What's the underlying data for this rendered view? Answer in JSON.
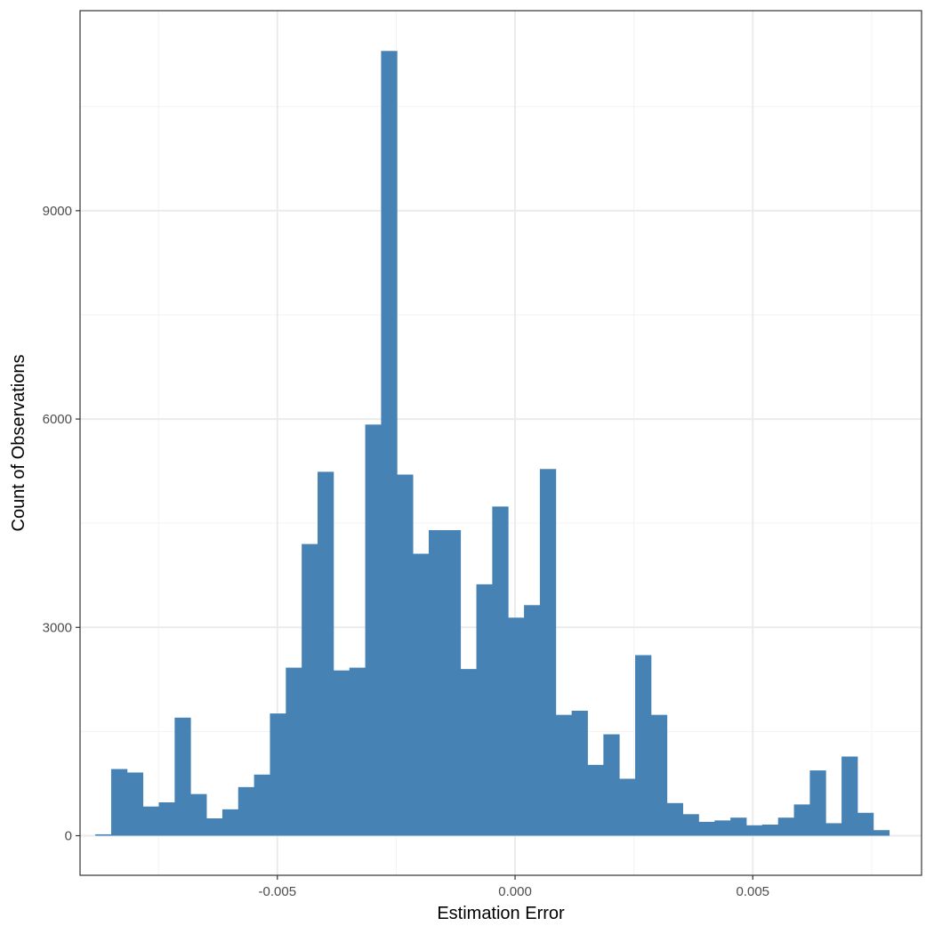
{
  "chart_data": {
    "type": "bar",
    "xlabel": "Estimation Error",
    "ylabel": "Count of Observations",
    "xlim": [
      -0.00915,
      0.00855
    ],
    "ylim": [
      -570,
      11880
    ],
    "x_ticks": [
      {
        "value": -0.005,
        "label": "-0.005"
      },
      {
        "value": 0.0,
        "label": "0.000"
      },
      {
        "value": 0.005,
        "label": "0.005"
      }
    ],
    "y_ticks": [
      {
        "value": 0,
        "label": "0"
      },
      {
        "value": 3000,
        "label": "3000"
      },
      {
        "value": 6000,
        "label": "6000"
      },
      {
        "value": 9000,
        "label": "9000"
      }
    ],
    "x_minor_breaks": [
      -0.0075,
      -0.0025,
      0.0025,
      0.0075
    ],
    "y_minor_breaks": [
      1500,
      4500,
      7500,
      10500
    ],
    "grid": true,
    "bin_start": -0.00883,
    "bin_width": 0.000334,
    "values": [
      20,
      960,
      910,
      420,
      480,
      1700,
      600,
      250,
      380,
      700,
      880,
      1760,
      2420,
      4200,
      5240,
      2380,
      2420,
      5920,
      11300,
      5200,
      4060,
      4400,
      4400,
      2400,
      3620,
      4740,
      3140,
      3320,
      5280,
      1740,
      1800,
      1020,
      1460,
      820,
      2600,
      1740,
      470,
      310,
      200,
      220,
      260,
      150,
      160,
      260,
      450,
      940,
      180,
      1140,
      330,
      80
    ],
    "colors": {
      "bar": "#4682b4",
      "grid_major": "#ebebeb",
      "grid_minor": "#f3f3f3",
      "panel_border": "#333333"
    }
  }
}
